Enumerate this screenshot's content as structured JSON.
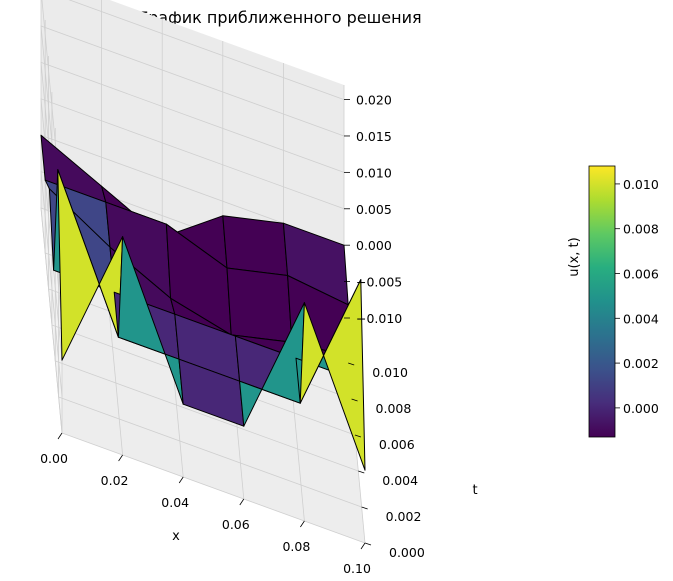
{
  "chart_data": {
    "type": "surface3d",
    "title": "График приближенного решения",
    "xlabel": "x",
    "ylabel": "t",
    "zlabel": "u(x, t)",
    "x_ticks": [
      "0.00",
      "0.02",
      "0.04",
      "0.06",
      "0.08",
      "0.10"
    ],
    "t_ticks": [
      "0.000",
      "0.002",
      "0.004",
      "0.006",
      "0.008",
      "0.010"
    ],
    "z_ticks": [
      "−0.010",
      "−0.005",
      "0.000",
      "0.005",
      "0.010",
      "0.015",
      "0.020"
    ],
    "xlim": [
      0,
      0.1
    ],
    "tlim": [
      0,
      0.0125
    ],
    "zlim": [
      -0.01,
      0.022
    ],
    "colormap": "viridis",
    "colorbar_range": [
      -0.0013,
      0.0108
    ],
    "colorbar_ticks": [
      "0.000",
      "0.002",
      "0.004",
      "0.006",
      "0.008",
      "0.010"
    ],
    "x": [
      0,
      0.02,
      0.04,
      0.06,
      0.08,
      0.1
    ],
    "t": [
      0,
      0.0025,
      0.005,
      0.0075,
      0.01,
      0.0125
    ],
    "u": [
      [
        0,
        0.02,
        0,
        0,
        0.02,
        0
      ],
      [
        0.02,
        0,
        0,
        0,
        0,
        0.02
      ],
      [
        0,
        0,
        0,
        0,
        0,
        0
      ],
      [
        0.005,
        0,
        -0.004,
        -0.006,
        -0.004,
        -0.003
      ],
      [
        0,
        0,
        0,
        -0.003,
        -0.001,
        -0.002
      ],
      [
        0,
        -0.004,
        -0.008,
        -0.002,
        0,
        0
      ]
    ]
  }
}
